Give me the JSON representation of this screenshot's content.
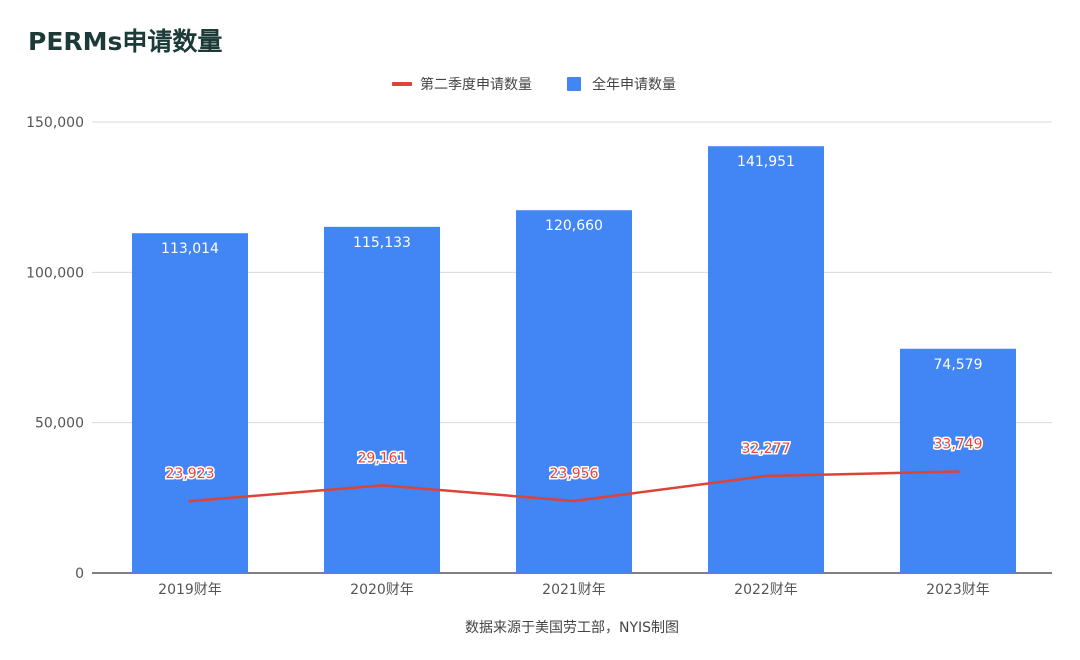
{
  "title": "PERMs申请数量",
  "source": "数据来源于美国劳工部，NYIS制图",
  "colors": {
    "bar": "#4285f4",
    "line": "#db4437",
    "grid": "#d9d9d9",
    "axis": "#333333"
  },
  "chart_data": {
    "type": "bar",
    "categories": [
      "2019财年",
      "2020财年",
      "2021财年",
      "2022财年",
      "2023财年"
    ],
    "series": [
      {
        "name": "全年申请数量",
        "type": "bar",
        "values": [
          113014,
          115133,
          120660,
          141951,
          74579
        ],
        "labels": [
          "113,014",
          "115,133",
          "120,660",
          "141,951",
          "74,579"
        ]
      },
      {
        "name": "第二季度申请数量",
        "type": "line",
        "values": [
          23923,
          29161,
          23956,
          32277,
          33749
        ],
        "labels": [
          "23,923",
          "29,161",
          "23,956",
          "32,277",
          "33,749"
        ]
      }
    ],
    "yticks": [
      "0",
      "50,000",
      "100,000",
      "150,000"
    ],
    "ylim": [
      0,
      150000
    ],
    "grid": true,
    "legend": "top-center"
  }
}
